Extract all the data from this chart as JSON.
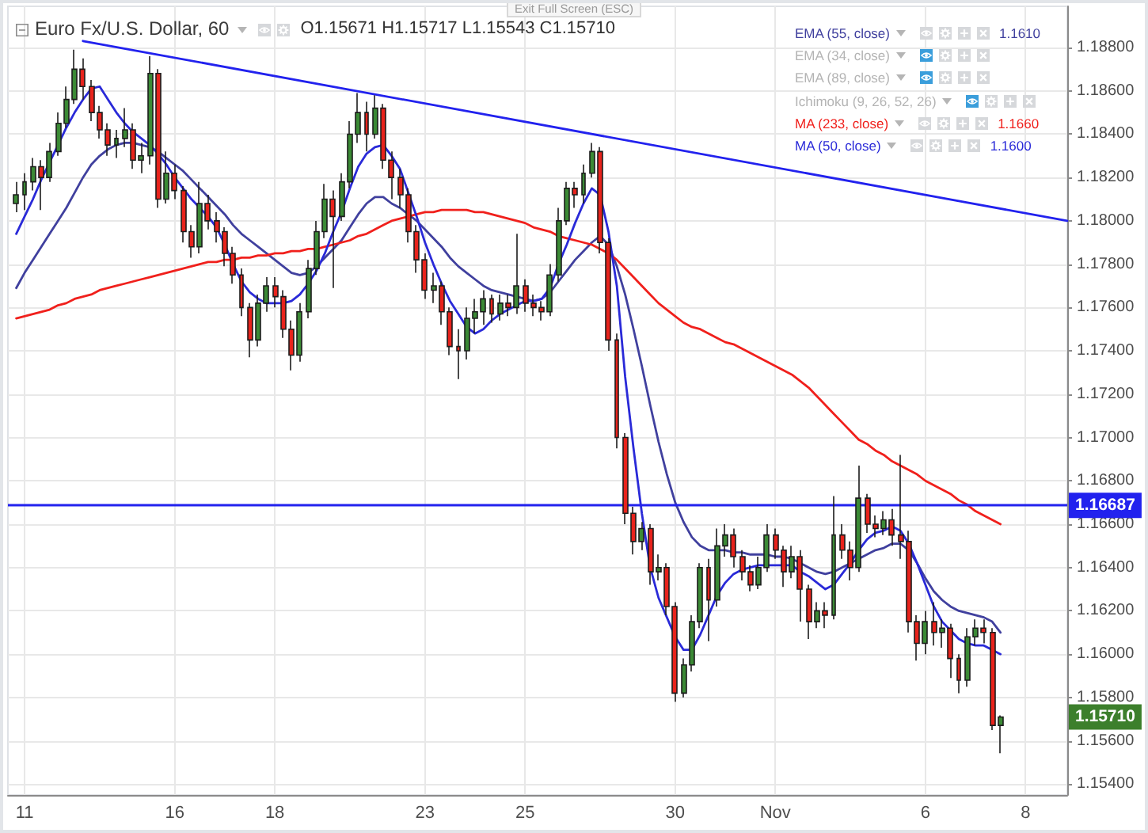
{
  "chart_data": {
    "type": "candlestick",
    "title": "Euro Fx/U.S. Dollar, 60",
    "subtitle": "O1.15671 H1.15717 L1.15543 C1.15710",
    "categories": [
      null,
      null,
      "11",
      null,
      null,
      null,
      null,
      null,
      null,
      null,
      null,
      null,
      null,
      null,
      null,
      null,
      null,
      null,
      null,
      null,
      "16",
      null,
      null,
      null,
      null,
      null,
      null,
      null,
      null,
      null,
      null,
      null,
      "18",
      null,
      null,
      null,
      null,
      null,
      null,
      null,
      null,
      null,
      null,
      null,
      null,
      null,
      null,
      null,
      null,
      null,
      "23",
      null,
      null,
      null,
      null,
      null,
      null,
      null,
      null,
      null,
      null,
      null,
      "25",
      null,
      null,
      null,
      null,
      null,
      null,
      null,
      null,
      null,
      null,
      null,
      null,
      null,
      null,
      null,
      null,
      null,
      "30",
      null,
      null,
      null,
      null,
      null,
      null,
      null,
      null,
      null,
      null,
      null,
      "Nov",
      null,
      null,
      null,
      null,
      null,
      null,
      null,
      null,
      null,
      null,
      null,
      null,
      null,
      null,
      null,
      null,
      null,
      "6",
      null,
      null,
      null,
      null,
      null,
      null,
      null,
      null,
      null,
      null,
      null,
      "8",
      null,
      null,
      null,
      null,
      null
    ],
    "ohlc": [
      null,
      [
        1.1808,
        1.1818,
        1.1804,
        1.1812
      ],
      [
        1.1812,
        1.1822,
        1.1805,
        1.1818
      ],
      [
        1.1818,
        1.1829,
        1.1814,
        1.1825
      ],
      [
        1.1825,
        1.1828,
        1.1805,
        1.182
      ],
      [
        1.182,
        1.1836,
        1.1818,
        1.1832
      ],
      [
        1.1832,
        1.185,
        1.183,
        1.1845
      ],
      [
        1.1845,
        1.1862,
        1.1843,
        1.1856
      ],
      [
        1.1856,
        1.1879,
        1.1854,
        1.187
      ],
      [
        1.187,
        1.1875,
        1.1856,
        1.1862
      ],
      [
        1.1862,
        1.1865,
        1.1846,
        1.185
      ],
      [
        1.185,
        1.1853,
        1.1838,
        1.1842
      ],
      [
        1.1842,
        1.1845,
        1.183,
        1.1835
      ],
      [
        1.1835,
        1.1842,
        1.1829,
        1.1838
      ],
      [
        1.1838,
        1.1852,
        1.1834,
        1.1842
      ],
      [
        1.1842,
        1.1845,
        1.1824,
        1.1828
      ],
      [
        1.1828,
        1.1836,
        1.1822,
        1.183
      ],
      [
        1.183,
        1.1876,
        1.1826,
        1.1868
      ],
      [
        1.1868,
        1.187,
        1.1806,
        1.181
      ],
      [
        1.181,
        1.1832,
        1.1808,
        1.1822
      ],
      [
        1.1822,
        1.1826,
        1.181,
        1.1814
      ],
      [
        1.1814,
        1.1816,
        1.179,
        1.1795
      ],
      [
        1.1795,
        1.1798,
        1.1783,
        1.1788
      ],
      [
        1.1788,
        1.1818,
        1.1785,
        1.1808
      ],
      [
        1.1808,
        1.1812,
        1.1796,
        1.18
      ],
      [
        1.18,
        1.1804,
        1.179,
        1.1795
      ],
      [
        1.1795,
        1.1797,
        1.1779,
        1.1785
      ],
      [
        1.1785,
        1.1788,
        1.1771,
        1.1775
      ],
      [
        1.1775,
        1.1778,
        1.1756,
        1.176
      ],
      [
        1.176,
        1.1762,
        1.1737,
        1.1745
      ],
      [
        1.1745,
        1.1766,
        1.1742,
        1.1762
      ],
      [
        1.1762,
        1.1774,
        1.1758,
        1.177
      ],
      [
        1.177,
        1.1774,
        1.176,
        1.1765
      ],
      [
        1.1765,
        1.1768,
        1.1746,
        1.175
      ],
      [
        1.175,
        1.1754,
        1.1731,
        1.1738
      ],
      [
        1.1738,
        1.1762,
        1.1735,
        1.1758
      ],
      [
        1.1758,
        1.1782,
        1.1755,
        1.1778
      ],
      [
        1.1778,
        1.18,
        1.1775,
        1.1795
      ],
      [
        1.1795,
        1.1817,
        1.1792,
        1.181
      ],
      [
        1.181,
        1.1814,
        1.1769,
        1.1802
      ],
      [
        1.1802,
        1.1822,
        1.18,
        1.1818
      ],
      [
        1.1818,
        1.1846,
        1.1815,
        1.184
      ],
      [
        1.184,
        1.1859,
        1.1836,
        1.185
      ],
      [
        1.185,
        1.1855,
        1.1832,
        1.184
      ],
      [
        1.184,
        1.1858,
        1.1838,
        1.1852
      ],
      [
        1.1852,
        1.1854,
        1.1824,
        1.1828
      ],
      [
        1.1828,
        1.1832,
        1.181,
        1.182
      ],
      [
        1.182,
        1.1824,
        1.1806,
        1.1812
      ],
      [
        1.1812,
        1.1815,
        1.179,
        1.1795
      ],
      [
        1.1795,
        1.1798,
        1.1776,
        1.1782
      ],
      [
        1.1782,
        1.1785,
        1.1764,
        1.1768
      ],
      [
        1.1768,
        1.1776,
        1.1762,
        1.177
      ],
      [
        1.177,
        1.1772,
        1.1752,
        1.1758
      ],
      [
        1.1758,
        1.176,
        1.1738,
        1.1742
      ],
      [
        1.1742,
        1.175,
        1.1727,
        1.174
      ],
      [
        1.174,
        1.176,
        1.1736,
        1.1755
      ],
      [
        1.1755,
        1.1764,
        1.1748,
        1.1758
      ],
      [
        1.1758,
        1.1768,
        1.1752,
        1.1764
      ],
      [
        1.1764,
        1.1766,
        1.1753,
        1.1757
      ],
      [
        1.1757,
        1.1766,
        1.1754,
        1.1762
      ],
      [
        1.1762,
        1.1766,
        1.1756,
        1.176
      ],
      [
        1.176,
        1.1794,
        1.1757,
        1.177
      ],
      [
        1.177,
        1.1773,
        1.1758,
        1.1762
      ],
      [
        1.1762,
        1.1766,
        1.1756,
        1.176
      ],
      [
        1.176,
        1.1763,
        1.1754,
        1.1758
      ],
      [
        1.1758,
        1.178,
        1.1756,
        1.1775
      ],
      [
        1.1775,
        1.1806,
        1.1772,
        1.18
      ],
      [
        1.18,
        1.1818,
        1.1798,
        1.1815
      ],
      [
        1.1815,
        1.1818,
        1.1806,
        1.1812
      ],
      [
        1.1812,
        1.1826,
        1.1808,
        1.1822
      ],
      [
        1.1822,
        1.1836,
        1.182,
        1.1832
      ],
      [
        1.1832,
        1.1834,
        1.1785,
        1.179
      ],
      [
        1.179,
        1.1792,
        1.174,
        1.1745
      ],
      [
        1.1745,
        1.1748,
        1.1695,
        1.17
      ],
      [
        1.17,
        1.1702,
        1.166,
        1.1665
      ],
      [
        1.1665,
        1.1668,
        1.1646,
        1.1652
      ],
      [
        1.1652,
        1.1661,
        1.1648,
        1.1658
      ],
      [
        1.1658,
        1.166,
        1.1632,
        1.1638
      ],
      [
        1.1638,
        1.1646,
        1.1634,
        1.164
      ],
      [
        1.164,
        1.1642,
        1.1618,
        1.1622
      ],
      [
        1.1622,
        1.1624,
        1.1578,
        1.1582
      ],
      [
        1.1582,
        1.1598,
        1.158,
        1.1595
      ],
      [
        1.1595,
        1.1618,
        1.1592,
        1.1615
      ],
      [
        1.1615,
        1.1642,
        1.1612,
        1.164
      ],
      [
        1.164,
        1.1644,
        1.1606,
        1.1625
      ],
      [
        1.1625,
        1.1658,
        1.1622,
        1.165
      ],
      [
        1.165,
        1.166,
        1.1645,
        1.1655
      ],
      [
        1.1655,
        1.1658,
        1.164,
        1.1645
      ],
      [
        1.1645,
        1.1648,
        1.1634,
        1.1638
      ],
      [
        1.1638,
        1.1641,
        1.1629,
        1.1632
      ],
      [
        1.1632,
        1.1645,
        1.163,
        1.164
      ],
      [
        1.164,
        1.166,
        1.1638,
        1.1655
      ],
      [
        1.1655,
        1.1658,
        1.1644,
        1.1648
      ],
      [
        1.1648,
        1.165,
        1.1631,
        1.1638
      ],
      [
        1.1638,
        1.165,
        1.1635,
        1.1645
      ],
      [
        1.1645,
        1.1648,
        1.1615,
        1.163
      ],
      [
        1.163,
        1.1632,
        1.1607,
        1.1615
      ],
      [
        1.1615,
        1.1624,
        1.1612,
        1.162
      ],
      [
        1.162,
        1.1624,
        1.1612,
        1.1618
      ],
      [
        1.1618,
        1.1673,
        1.1616,
        1.1655
      ],
      [
        1.1655,
        1.166,
        1.1644,
        1.1648
      ],
      [
        1.1648,
        1.1652,
        1.1634,
        1.164
      ],
      [
        1.164,
        1.1687,
        1.1638,
        1.1672
      ],
      [
        1.1672,
        1.1674,
        1.1656,
        1.166
      ],
      [
        1.166,
        1.1664,
        1.1654,
        1.1658
      ],
      [
        1.1658,
        1.1666,
        1.1655,
        1.1662
      ],
      [
        1.1662,
        1.1667,
        1.165,
        1.1655
      ],
      [
        1.1655,
        1.1692,
        1.1644,
        1.1652
      ],
      [
        1.1652,
        1.1657,
        1.161,
        1.1615
      ],
      [
        1.1615,
        1.1618,
        1.1597,
        1.1605
      ],
      [
        1.1605,
        1.162,
        1.16,
        1.1615
      ],
      [
        1.1615,
        1.1624,
        1.1604,
        1.161
      ],
      [
        1.161,
        1.1616,
        1.1603,
        1.1612
      ],
      [
        1.1612,
        1.1614,
        1.1589,
        1.1598
      ],
      [
        1.1598,
        1.16,
        1.1582,
        1.1588
      ],
      [
        1.1588,
        1.1612,
        1.1585,
        1.1608
      ],
      [
        1.1608,
        1.1616,
        1.1604,
        1.1612
      ],
      [
        1.1612,
        1.1616,
        1.1605,
        1.161
      ],
      [
        1.161,
        1.1612,
        1.1565,
        1.15671
      ],
      [
        1.15671,
        1.15717,
        1.15543,
        1.1571
      ],
      null,
      null,
      null,
      null,
      null,
      null,
      null,
      null
    ],
    "series": [
      {
        "type": "line",
        "name": "EMA (55, close)",
        "color": "#40409e",
        "values": [
          null,
          1.1769,
          1.1776,
          1.1782,
          1.1788,
          1.1794,
          1.18,
          1.1806,
          1.1813,
          1.182,
          1.1826,
          1.183,
          1.1833,
          1.1835,
          1.1836,
          1.1836,
          1.1835,
          1.1834,
          1.1832,
          1.1829,
          1.1826,
          1.1823,
          1.1819,
          1.1815,
          1.1811,
          1.1807,
          1.1803,
          1.1798,
          1.1794,
          1.1791,
          1.1788,
          1.1785,
          1.1782,
          1.1779,
          1.1776,
          1.1775,
          1.1776,
          1.1779,
          1.1783,
          1.1787,
          1.1791,
          1.1797,
          1.1803,
          1.1808,
          1.1811,
          1.1811,
          1.1808,
          1.1806,
          1.1803,
          1.18,
          1.1796,
          1.1792,
          1.1788,
          1.1783,
          1.1779,
          1.1776,
          1.1773,
          1.177,
          1.1768,
          1.1767,
          1.1766,
          1.1765,
          1.1764,
          1.1763,
          1.1764,
          1.1767,
          1.1772,
          1.1777,
          1.1782,
          1.1786,
          1.179,
          1.1793,
          1.1789,
          1.1779,
          1.1766,
          1.175,
          1.1733,
          1.1715,
          1.1698,
          1.1683,
          1.167,
          1.1661,
          1.1654,
          1.165,
          1.1648,
          1.1648,
          1.1648,
          1.1647,
          1.1647,
          1.1646,
          1.1646,
          1.1646,
          1.1645,
          1.1645,
          1.1644,
          1.1642,
          1.164,
          1.1638,
          1.1637,
          1.1638,
          1.164,
          1.1642,
          1.1644,
          1.1646,
          1.1648,
          1.1649,
          1.1651,
          1.1651,
          1.1648,
          1.1642,
          1.1635,
          1.1629,
          1.1625,
          1.1622,
          1.162,
          1.1619,
          1.1618,
          1.1617,
          1.1615,
          1.161,
          null,
          null,
          null,
          null,
          null,
          null,
          null,
          null
        ]
      },
      {
        "type": "line",
        "name": "MA (233, close)",
        "color": "#f0201c",
        "values": [
          null,
          1.1755,
          1.1756,
          1.1757,
          1.1758,
          1.1759,
          1.1761,
          1.1762,
          1.1764,
          1.1765,
          1.1766,
          1.1768,
          1.1769,
          1.177,
          1.1771,
          1.1772,
          1.1773,
          1.1774,
          1.1775,
          1.1776,
          1.1777,
          1.1778,
          1.1779,
          1.178,
          1.1781,
          1.1781,
          1.1782,
          1.1782,
          1.1783,
          1.1783,
          1.1784,
          1.1784,
          1.1785,
          1.1785,
          1.1786,
          1.1786,
          1.1787,
          1.1787,
          1.1788,
          1.1789,
          1.179,
          1.1791,
          1.1793,
          1.1794,
          1.1796,
          1.1798,
          1.18,
          1.1801,
          1.1802,
          1.1803,
          1.1804,
          1.1804,
          1.1805,
          1.1805,
          1.1805,
          1.1805,
          1.1804,
          1.1804,
          1.1803,
          1.1802,
          1.1801,
          1.18,
          1.1799,
          1.1797,
          1.1796,
          1.1795,
          1.1793,
          1.1792,
          1.1791,
          1.179,
          1.1789,
          1.1787,
          1.1785,
          1.1782,
          1.1778,
          1.1774,
          1.177,
          1.1766,
          1.1762,
          1.1759,
          1.1756,
          1.1753,
          1.1751,
          1.175,
          1.1748,
          1.1746,
          1.1744,
          1.1743,
          1.1741,
          1.1739,
          1.1737,
          1.1735,
          1.1733,
          1.1731,
          1.1729,
          1.1726,
          1.1723,
          1.1719,
          1.1715,
          1.1711,
          1.1707,
          1.1703,
          1.1699,
          1.1697,
          1.1694,
          1.1692,
          1.1689,
          1.1687,
          1.1685,
          1.1683,
          1.168,
          1.1678,
          1.1676,
          1.1674,
          1.1671,
          1.1669,
          1.1666,
          1.1664,
          1.1662,
          1.166,
          null,
          null,
          null,
          null,
          null,
          null,
          null,
          null
        ]
      },
      {
        "type": "line",
        "name": "MA (50, close)",
        "color": "#2a2ad8",
        "values": [
          null,
          1.1794,
          1.1802,
          1.181,
          1.1819,
          1.1827,
          1.1835,
          1.1843,
          1.185,
          1.1856,
          1.1861,
          1.1862,
          1.1856,
          1.185,
          1.1845,
          1.1841,
          1.1838,
          1.1835,
          1.1831,
          1.1826,
          1.182,
          1.1815,
          1.181,
          1.1806,
          1.1802,
          1.1797,
          1.1789,
          1.178,
          1.1772,
          1.1767,
          1.1764,
          1.1762,
          1.1762,
          1.1762,
          1.1763,
          1.1766,
          1.1771,
          1.1777,
          1.1785,
          1.1795,
          1.1804,
          1.1815,
          1.1825,
          1.1831,
          1.1834,
          1.1835,
          1.183,
          1.1824,
          1.1813,
          1.1802,
          1.179,
          1.178,
          1.1771,
          1.1763,
          1.1757,
          1.1751,
          1.1748,
          1.175,
          1.1754,
          1.1757,
          1.1759,
          1.1761,
          1.1763,
          1.1763,
          1.1764,
          1.1769,
          1.178,
          1.1789,
          1.1799,
          1.1808,
          1.1815,
          1.1812,
          1.1795,
          1.177,
          1.1728,
          1.1695,
          1.1665,
          1.164,
          1.1626,
          1.1617,
          1.1608,
          1.1602,
          1.1602,
          1.1609,
          1.1618,
          1.1627,
          1.1633,
          1.1637,
          1.1639,
          1.164,
          1.1641,
          1.1641,
          1.1641,
          1.1641,
          1.1641,
          1.1638,
          1.1636,
          1.1633,
          1.163,
          1.1632,
          1.1637,
          1.1642,
          1.1648,
          1.1653,
          1.1656,
          1.1657,
          1.1659,
          1.1657,
          1.1651,
          1.1642,
          1.1632,
          1.1622,
          1.1615,
          1.1611,
          1.1607,
          1.1605,
          1.1604,
          1.1604,
          1.1602,
          1.16,
          null,
          null,
          null,
          null,
          null,
          null,
          null,
          null
        ]
      },
      {
        "type": "line",
        "color": "#2222ee",
        "values": [
          null,
          null,
          null,
          null,
          null,
          null,
          null,
          null,
          null,
          1.1883,
          null,
          null,
          null,
          null,
          null,
          null,
          null,
          null,
          null,
          null,
          null,
          null,
          null,
          null,
          null,
          null,
          null,
          null,
          null,
          null,
          null,
          null,
          null,
          null,
          null,
          null,
          null,
          null,
          null,
          null,
          null,
          null,
          null,
          null,
          null,
          null,
          null,
          null,
          null,
          null,
          null,
          null,
          null,
          null,
          null,
          null,
          null,
          null,
          null,
          null,
          null,
          null,
          null,
          null,
          null,
          null,
          null,
          null,
          null,
          null,
          null,
          null,
          null,
          null,
          null,
          null,
          null,
          null,
          null,
          null,
          null,
          null,
          null,
          null,
          null,
          null,
          null,
          null,
          null,
          null,
          null,
          null,
          null,
          null,
          null,
          null,
          null,
          null,
          null,
          null,
          null,
          null,
          null,
          null,
          null,
          null,
          null,
          null,
          null,
          null,
          null,
          null,
          null,
          null,
          null,
          null,
          null,
          null,
          null,
          null,
          null,
          null,
          null,
          null,
          null,
          null,
          null,
          1.18
        ]
      }
    ],
    "ylim": [
      1.1535,
      1.1899
    ],
    "yticks": [
      {
        "value": 1.154,
        "label": "1.15400"
      },
      {
        "value": 1.156,
        "label": "1.15600"
      },
      {
        "value": 1.158,
        "label": "1.15800"
      },
      {
        "value": 1.16,
        "label": "1.16000"
      },
      {
        "value": 1.162,
        "label": "1.16200"
      },
      {
        "value": 1.164,
        "label": "1.16400"
      },
      {
        "value": 1.166,
        "label": "1.16600"
      },
      {
        "value": 1.168,
        "label": "1.16800"
      },
      {
        "value": 1.17,
        "label": "1.17000"
      },
      {
        "value": 1.172,
        "label": "1.17200"
      },
      {
        "value": 1.174,
        "label": "1.17400"
      },
      {
        "value": 1.176,
        "label": "1.17600"
      },
      {
        "value": 1.178,
        "label": "1.17800"
      },
      {
        "value": 1.18,
        "label": "1.18000"
      },
      {
        "value": 1.182,
        "label": "1.18200"
      },
      {
        "value": 1.184,
        "label": "1.18400"
      },
      {
        "value": 1.186,
        "label": "1.18600"
      },
      {
        "value": 1.188,
        "label": "1.18800"
      }
    ],
    "ref_lines": [
      {
        "axis": "y",
        "value": 1.16687,
        "label": "1.16687",
        "color": "#2222ee"
      }
    ],
    "annotations": [
      "Exit Full Screen (ESC)",
      "1.1610",
      "1.1660",
      "1.1600",
      "EMA (34, close)",
      "EMA (89, close)",
      "Ichimoku (9, 26, 52, 26)",
      "1.15710"
    ],
    "grid": true,
    "legend": "top right",
    "marker": "none"
  }
}
